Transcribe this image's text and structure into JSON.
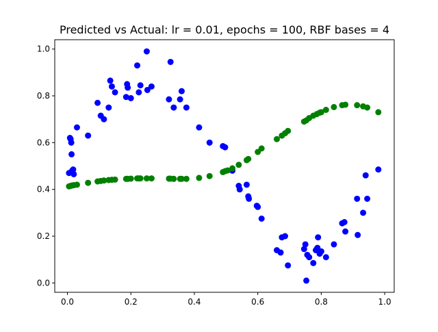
{
  "chart_data": {
    "type": "scatter",
    "title": "Predicted vs Actual: lr = 0.01, epochs = 100, RBF bases = 4",
    "xlabel": "",
    "ylabel": "",
    "xlim": [
      -0.04,
      1.03
    ],
    "ylim": [
      -0.04,
      1.04
    ],
    "xticks": [
      0.0,
      0.2,
      0.4,
      0.6,
      0.8,
      1.0
    ],
    "xtick_labels": [
      "0.0",
      "0.2",
      "0.4",
      "0.6",
      "0.8",
      "1.0"
    ],
    "yticks": [
      0.0,
      0.2,
      0.4,
      0.6,
      0.8,
      1.0
    ],
    "ytick_labels": [
      "0.0",
      "0.2",
      "0.4",
      "0.6",
      "0.8",
      "1.0"
    ],
    "grid": false,
    "legend": "none",
    "series": [
      {
        "color": "#0000ff",
        "points": [
          [
            0.005,
            0.47
          ],
          [
            0.008,
            0.62
          ],
          [
            0.01,
            0.615
          ],
          [
            0.012,
            0.6
          ],
          [
            0.013,
            0.55
          ],
          [
            0.015,
            0.48
          ],
          [
            0.018,
            0.485
          ],
          [
            0.02,
            0.465
          ],
          [
            0.03,
            0.665
          ],
          [
            0.065,
            0.63
          ],
          [
            0.095,
            0.77
          ],
          [
            0.105,
            0.715
          ],
          [
            0.115,
            0.7
          ],
          [
            0.13,
            0.75
          ],
          [
            0.135,
            0.865
          ],
          [
            0.14,
            0.84
          ],
          [
            0.15,
            0.815
          ],
          [
            0.185,
            0.795
          ],
          [
            0.188,
            0.85
          ],
          [
            0.19,
            0.835
          ],
          [
            0.2,
            0.79
          ],
          [
            0.22,
            0.93
          ],
          [
            0.225,
            0.815
          ],
          [
            0.23,
            0.845
          ],
          [
            0.25,
            0.99
          ],
          [
            0.252,
            0.825
          ],
          [
            0.265,
            0.84
          ],
          [
            0.32,
            0.785
          ],
          [
            0.325,
            0.945
          ],
          [
            0.335,
            0.75
          ],
          [
            0.355,
            0.785
          ],
          [
            0.36,
            0.82
          ],
          [
            0.375,
            0.75
          ],
          [
            0.415,
            0.665
          ],
          [
            0.448,
            0.6
          ],
          [
            0.49,
            0.585
          ],
          [
            0.497,
            0.58
          ],
          [
            0.52,
            0.48
          ],
          [
            0.54,
            0.415
          ],
          [
            0.543,
            0.4
          ],
          [
            0.565,
            0.42
          ],
          [
            0.57,
            0.37
          ],
          [
            0.572,
            0.36
          ],
          [
            0.597,
            0.33
          ],
          [
            0.6,
            0.325
          ],
          [
            0.612,
            0.275
          ],
          [
            0.66,
            0.14
          ],
          [
            0.672,
            0.13
          ],
          [
            0.676,
            0.195
          ],
          [
            0.686,
            0.2
          ],
          [
            0.695,
            0.075
          ],
          [
            0.746,
            0.145
          ],
          [
            0.75,
            0.165
          ],
          [
            0.753,
            0.01
          ],
          [
            0.756,
            0.12
          ],
          [
            0.762,
            0.11
          ],
          [
            0.775,
            0.085
          ],
          [
            0.783,
            0.14
          ],
          [
            0.786,
            0.145
          ],
          [
            0.788,
            0.15
          ],
          [
            0.79,
            0.195
          ],
          [
            0.795,
            0.125
          ],
          [
            0.8,
            0.135
          ],
          [
            0.815,
            0.11
          ],
          [
            0.84,
            0.165
          ],
          [
            0.866,
            0.255
          ],
          [
            0.873,
            0.26
          ],
          [
            0.876,
            0.22
          ],
          [
            0.913,
            0.36
          ],
          [
            0.915,
            0.205
          ],
          [
            0.932,
            0.3
          ],
          [
            0.94,
            0.46
          ],
          [
            0.945,
            0.36
          ],
          [
            0.98,
            0.485
          ]
        ]
      },
      {
        "color": "#008000",
        "points": [
          [
            0.005,
            0.413
          ],
          [
            0.01,
            0.415
          ],
          [
            0.015,
            0.417
          ],
          [
            0.02,
            0.418
          ],
          [
            0.03,
            0.42
          ],
          [
            0.065,
            0.428
          ],
          [
            0.095,
            0.434
          ],
          [
            0.105,
            0.436
          ],
          [
            0.115,
            0.438
          ],
          [
            0.13,
            0.44
          ],
          [
            0.14,
            0.441
          ],
          [
            0.15,
            0.442
          ],
          [
            0.185,
            0.445
          ],
          [
            0.19,
            0.445
          ],
          [
            0.2,
            0.446
          ],
          [
            0.22,
            0.447
          ],
          [
            0.225,
            0.447
          ],
          [
            0.23,
            0.447
          ],
          [
            0.25,
            0.447
          ],
          [
            0.265,
            0.447
          ],
          [
            0.32,
            0.446
          ],
          [
            0.325,
            0.446
          ],
          [
            0.335,
            0.445
          ],
          [
            0.355,
            0.445
          ],
          [
            0.36,
            0.445
          ],
          [
            0.375,
            0.445
          ],
          [
            0.415,
            0.449
          ],
          [
            0.448,
            0.457
          ],
          [
            0.49,
            0.474
          ],
          [
            0.497,
            0.478
          ],
          [
            0.505,
            0.481
          ],
          [
            0.52,
            0.49
          ],
          [
            0.54,
            0.505
          ],
          [
            0.565,
            0.525
          ],
          [
            0.57,
            0.53
          ],
          [
            0.6,
            0.56
          ],
          [
            0.612,
            0.575
          ],
          [
            0.66,
            0.615
          ],
          [
            0.676,
            0.63
          ],
          [
            0.686,
            0.64
          ],
          [
            0.695,
            0.65
          ],
          [
            0.746,
            0.69
          ],
          [
            0.753,
            0.695
          ],
          [
            0.762,
            0.705
          ],
          [
            0.775,
            0.715
          ],
          [
            0.786,
            0.722
          ],
          [
            0.795,
            0.728
          ],
          [
            0.8,
            0.73
          ],
          [
            0.815,
            0.74
          ],
          [
            0.84,
            0.752
          ],
          [
            0.866,
            0.76
          ],
          [
            0.876,
            0.762
          ],
          [
            0.913,
            0.76
          ],
          [
            0.932,
            0.755
          ],
          [
            0.945,
            0.75
          ],
          [
            0.98,
            0.73
          ]
        ]
      }
    ]
  }
}
